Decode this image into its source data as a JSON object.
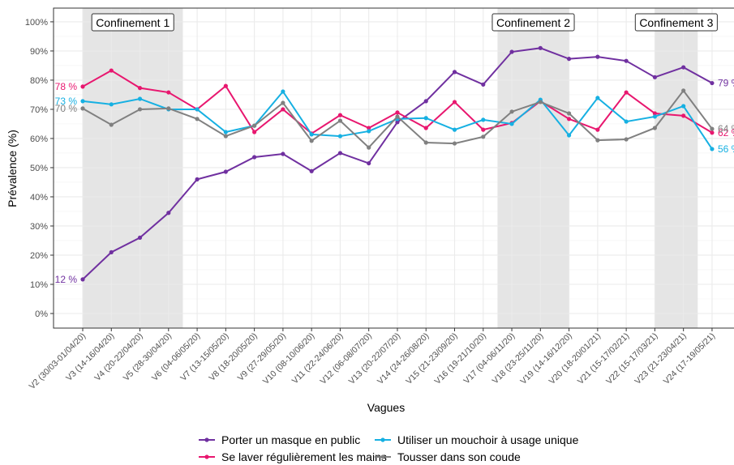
{
  "chart_data": {
    "type": "line",
    "xlabel": "Vagues",
    "ylabel": "Prévalence (%)",
    "categories": [
      "V2 (30/03-01/04/20)",
      "V3 (14-16/04/20)",
      "V4 (20-22/04/20)",
      "V5 (28-30/04/20)",
      "V6 (04-06/05/20)",
      "V7 (13-15/05/20)",
      "V8 (18-20/05/20)",
      "V9 (27-29/05/20)",
      "V10 (08-10/06/20)",
      "V11 (22-24/06/20)",
      "V12 (06-08/07/20)",
      "V13 (20-22/07/20)",
      "V14 (24-26/08/20)",
      "V15 (21-23/09/20)",
      "V16 (19-21/10/20)",
      "V17 (04-06/11/20)",
      "V18 (23-25/11/20)",
      "V19 (14-16/12/20)",
      "V20 (18-20/01/21)",
      "V21 (15-17/02/21)",
      "V22 (15-17/03/21)",
      "V23 (21-23/04/21)",
      "V24 (17-19/05/21)"
    ],
    "series": [
      {
        "name": "Porter un masque en public",
        "color": "#7030a0",
        "start_label": "12 %",
        "end_label": "79 %",
        "values": [
          11.7,
          21,
          26,
          34.5,
          46,
          48.6,
          53.6,
          54.7,
          48.8,
          55,
          51.5,
          65.6,
          72.8,
          82.8,
          78.5,
          89.7,
          91,
          87.3,
          88,
          86.6,
          81,
          84.4,
          79
        ]
      },
      {
        "name": "Se laver régulièrement les mains",
        "color": "#e8176f",
        "start_label": "78 %",
        "end_label": "62 %",
        "values": [
          77.8,
          83.3,
          77.3,
          75.8,
          70,
          78,
          62.2,
          70,
          61.7,
          68,
          63.6,
          68.9,
          63.6,
          72.5,
          63,
          65.3,
          72.8,
          66.7,
          63,
          75.8,
          68.6,
          67.8,
          62
        ]
      },
      {
        "name": "Utiliser un mouchoir à usage unique",
        "color": "#16b0e2",
        "start_label": "73 %",
        "end_label": "56 %",
        "values": [
          72.8,
          71.7,
          73.6,
          70,
          70,
          62.2,
          64.4,
          76.1,
          61.4,
          60.8,
          62.5,
          66.7,
          67,
          63,
          66.4,
          65,
          73.3,
          61.1,
          73.9,
          65.8,
          67.5,
          71.1,
          56.4
        ]
      },
      {
        "name": "Tousser dans son coude",
        "color": "#808080",
        "start_label": "70 %",
        "end_label": "64 %",
        "values": [
          70.3,
          64.7,
          70,
          70.3,
          66.7,
          60.8,
          64.4,
          72.2,
          59.2,
          66.1,
          56.9,
          67.5,
          58.6,
          58.3,
          60.6,
          69.2,
          72.5,
          68.6,
          59.4,
          59.7,
          63.6,
          76.4,
          63.3
        ]
      }
    ],
    "periods": [
      {
        "label": "Confinement 1",
        "start": 0,
        "end": 3.5
      },
      {
        "label": "Confinement 2",
        "start": 14.5,
        "end": 17
      },
      {
        "label": "Confinement 3",
        "start": 20,
        "end": 21.5
      }
    ],
    "ylim": [
      -5,
      104.7
    ],
    "yticks": [
      {
        "value": 0,
        "label": "0%"
      },
      {
        "value": 10,
        "label": "10%"
      },
      {
        "value": 20,
        "label": "20%"
      },
      {
        "value": 30,
        "label": "30%"
      },
      {
        "value": 40,
        "label": "40%"
      },
      {
        "value": 50,
        "label": "50%"
      },
      {
        "value": 60,
        "label": "60%"
      },
      {
        "value": 70,
        "label": "70%"
      },
      {
        "value": 80,
        "label": "80%"
      },
      {
        "value": 90,
        "label": "90%"
      },
      {
        "value": 100,
        "label": "100%"
      }
    ],
    "grid": true,
    "legend": "bottom"
  }
}
